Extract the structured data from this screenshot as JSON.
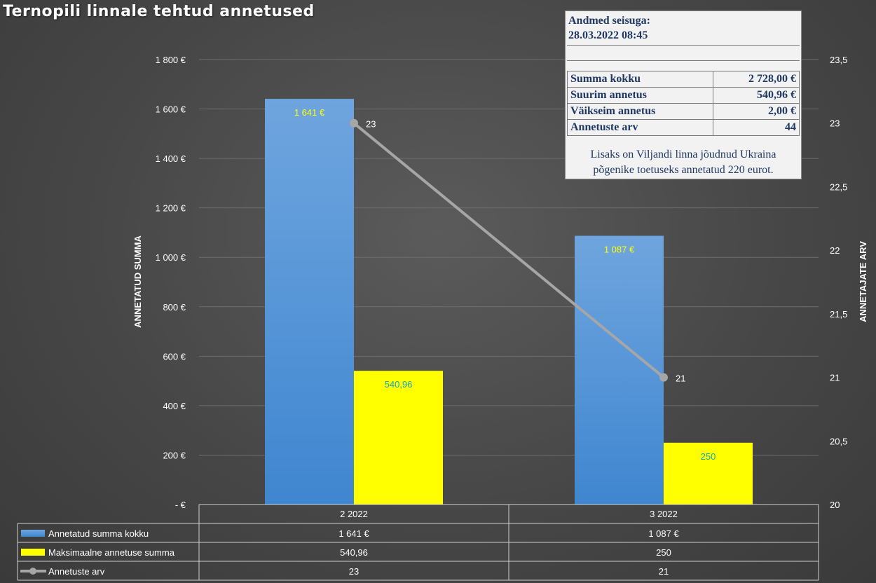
{
  "chart_data": {
    "type": "bar",
    "title": "Ternopili linnale tehtud annetused",
    "categories": [
      "2 2022",
      "3 2022"
    ],
    "series": [
      {
        "name": "Annetatud summa kokku",
        "kind": "bar",
        "axis": "left",
        "color": "#4a8fd6",
        "values": [
          1641,
          1087
        ],
        "labels": [
          "1 641 €",
          "1 087 €"
        ],
        "label_color": "#ffff00"
      },
      {
        "name": "Maksimaalne annetuse summa",
        "kind": "bar",
        "axis": "left",
        "color": "#ffff00",
        "values": [
          540.96,
          250
        ],
        "labels": [
          "540,96",
          "250"
        ],
        "label_color": "#17a5c8"
      },
      {
        "name": "Annetuste arv",
        "kind": "line",
        "axis": "right",
        "color": "#a6a6a6",
        "values": [
          23,
          21
        ],
        "labels": [
          "23",
          "21"
        ],
        "label_color": "#ffffff"
      }
    ],
    "ylabel": "ANNETATUD SUMMA",
    "ylabel_right": "ANNETAJATE ARV",
    "ylim": [
      0,
      1800
    ],
    "ylim_right": [
      20,
      23.5
    ],
    "yticks": [
      {
        "value": 1800,
        "label": "1 800 €"
      },
      {
        "value": 1600,
        "label": "1 600 €"
      },
      {
        "value": 1400,
        "label": "1 400 €"
      },
      {
        "value": 1200,
        "label": "1 200 €"
      },
      {
        "value": 1000,
        "label": "1 000 €"
      },
      {
        "value": 800,
        "label": "800 €"
      },
      {
        "value": 600,
        "label": "600 €"
      },
      {
        "value": 400,
        "label": "400 €"
      },
      {
        "value": 200,
        "label": "200 €"
      },
      {
        "value": 0,
        "label": "-   €"
      }
    ],
    "yticks_right": [
      {
        "value": 23.5,
        "label": "23,5"
      },
      {
        "value": 23,
        "label": "23"
      },
      {
        "value": 22.5,
        "label": "22,5"
      },
      {
        "value": 22,
        "label": "22"
      },
      {
        "value": 21.5,
        "label": "21,5"
      },
      {
        "value": 21,
        "label": "21"
      },
      {
        "value": 20.5,
        "label": "20,5"
      },
      {
        "value": 20,
        "label": "20"
      }
    ],
    "grid": true,
    "legend": "data-table",
    "data_table": {
      "rows": [
        {
          "name": "Annetatud summa kokku",
          "values": [
            "1 641 €",
            "1 087 €"
          ]
        },
        {
          "name": "Maksimaalne annetuse summa",
          "values": [
            "540,96",
            "250"
          ]
        },
        {
          "name": "Annetuste arv",
          "values": [
            "23",
            "21"
          ]
        }
      ]
    }
  },
  "info_box": {
    "heading_line1": "Andmed seisuga:",
    "heading_line2": "28.03.2022 08:45",
    "rows": [
      {
        "label": "Summa kokku",
        "value": "2 728,00 €"
      },
      {
        "label": "Suurim annetus",
        "value": "540,96 €"
      },
      {
        "label": "Väikseim annetus",
        "value": "2,00 €"
      },
      {
        "label": "Annetuste arv",
        "value": "44"
      }
    ],
    "note_line1": "Lisaks on Viljandi linna jõudnud Ukraina",
    "note_line2": "põgenike toetuseks annetatud 220 eurot."
  }
}
